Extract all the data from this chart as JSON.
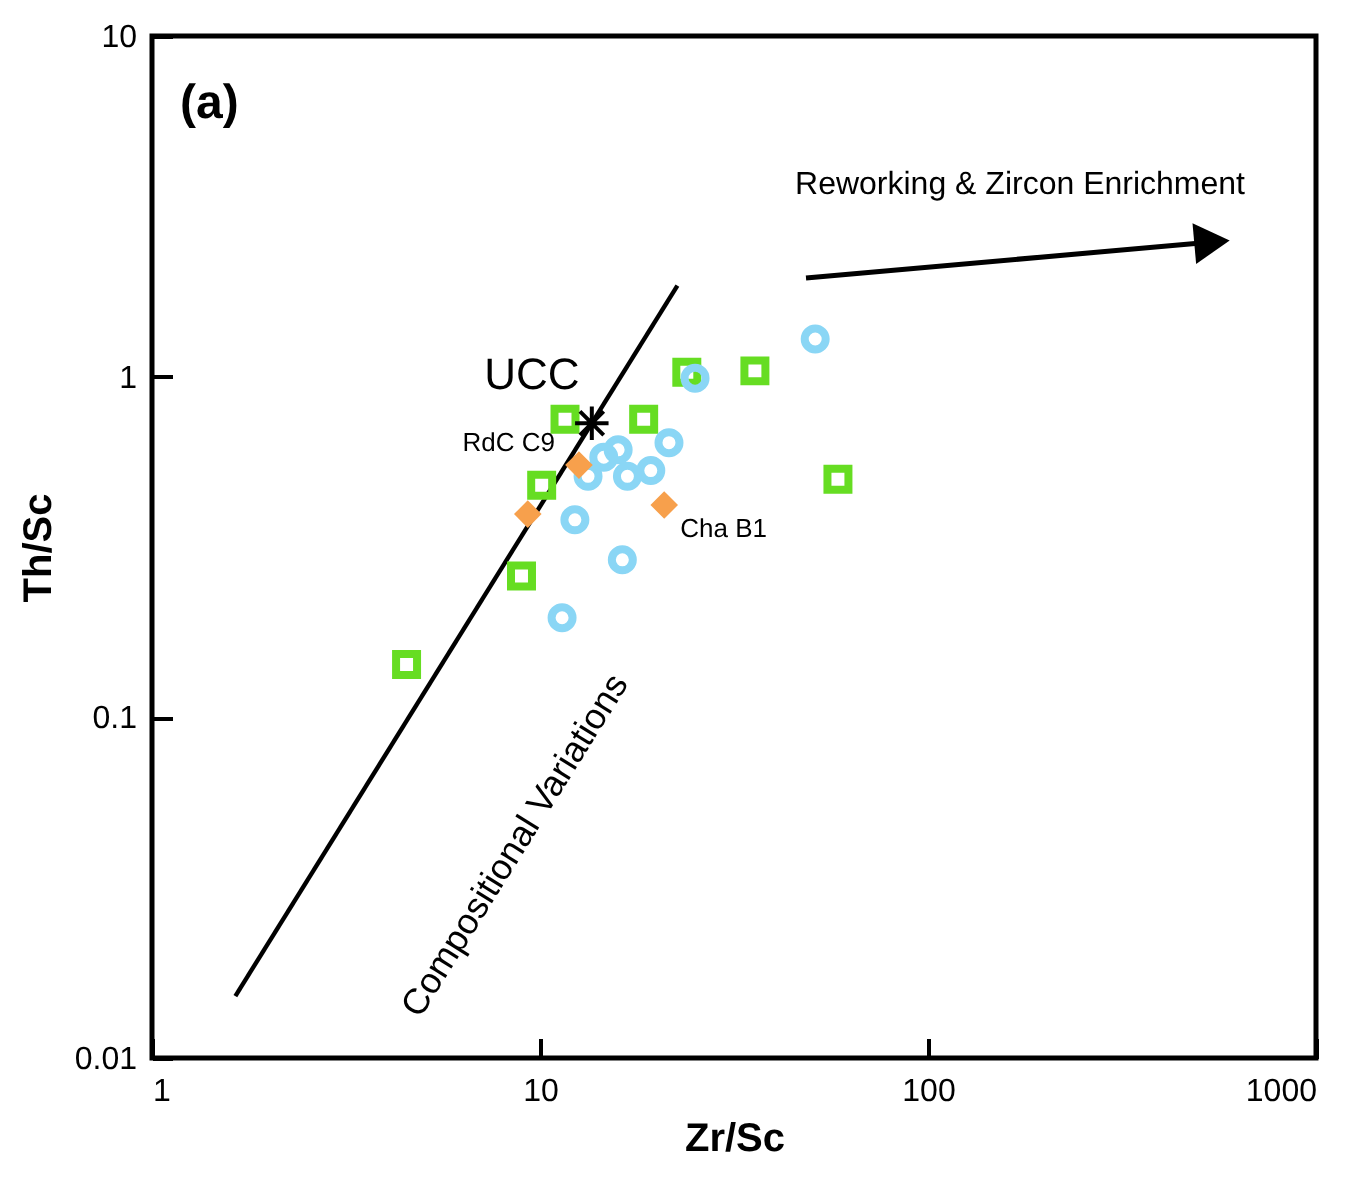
{
  "chart_data": {
    "type": "scatter",
    "xlabel": "Zr/Sc",
    "ylabel": "Th/Sc",
    "log": "xy",
    "xlim": [
      1,
      1000
    ],
    "xticks": [
      1,
      10,
      100,
      1000
    ],
    "ylim": [
      0.01,
      10
    ],
    "yticks": [
      0.01,
      0.1,
      1,
      10
    ],
    "grid": false,
    "series": [
      {
        "type": "line",
        "color": "#000000",
        "x": [
          1.64,
          22.6
        ],
        "values": [
          0.0152,
          1.85
        ]
      },
      {
        "color": "#66dd22",
        "marker": "square",
        "x": [
          11.6,
          18.5,
          23.9,
          35.8,
          58.6,
          10.1,
          8.96,
          4.53
        ],
        "values": [
          0.75,
          0.75,
          1.03,
          1.04,
          0.5,
          0.48,
          0.26,
          0.143
        ]
      },
      {
        "color": "#8ad6f5",
        "marker": "circle",
        "x": [
          51.2,
          25.1,
          21.5,
          15.9,
          19.3,
          16.8,
          13.3,
          14.6,
          12.3,
          16.3,
          11.4
        ],
        "values": [
          1.29,
          0.99,
          0.64,
          0.61,
          0.53,
          0.51,
          0.51,
          0.58,
          0.38,
          0.29,
          0.196
        ]
      },
      {
        "color": "#f7a04c",
        "marker": "diamond",
        "x": [
          12.6,
          9.3,
          20.9
        ],
        "values": [
          0.55,
          0.395,
          0.42
        ]
      },
      {
        "color": "#000000",
        "marker": "cross",
        "x": [
          13.6
        ],
        "values": [
          0.73
        ]
      }
    ],
    "annotations": [
      "(a)",
      {
        "text": "UCC",
        "x": 13.6,
        "y": 0.73
      },
      {
        "text": "RdC C9",
        "x": 12.6,
        "y": 0.55
      },
      {
        "text": "Cha B1",
        "x": 20.9,
        "y": 0.42
      },
      "Compositional Variations",
      "Reworking & Zircon Enrichment"
    ]
  }
}
